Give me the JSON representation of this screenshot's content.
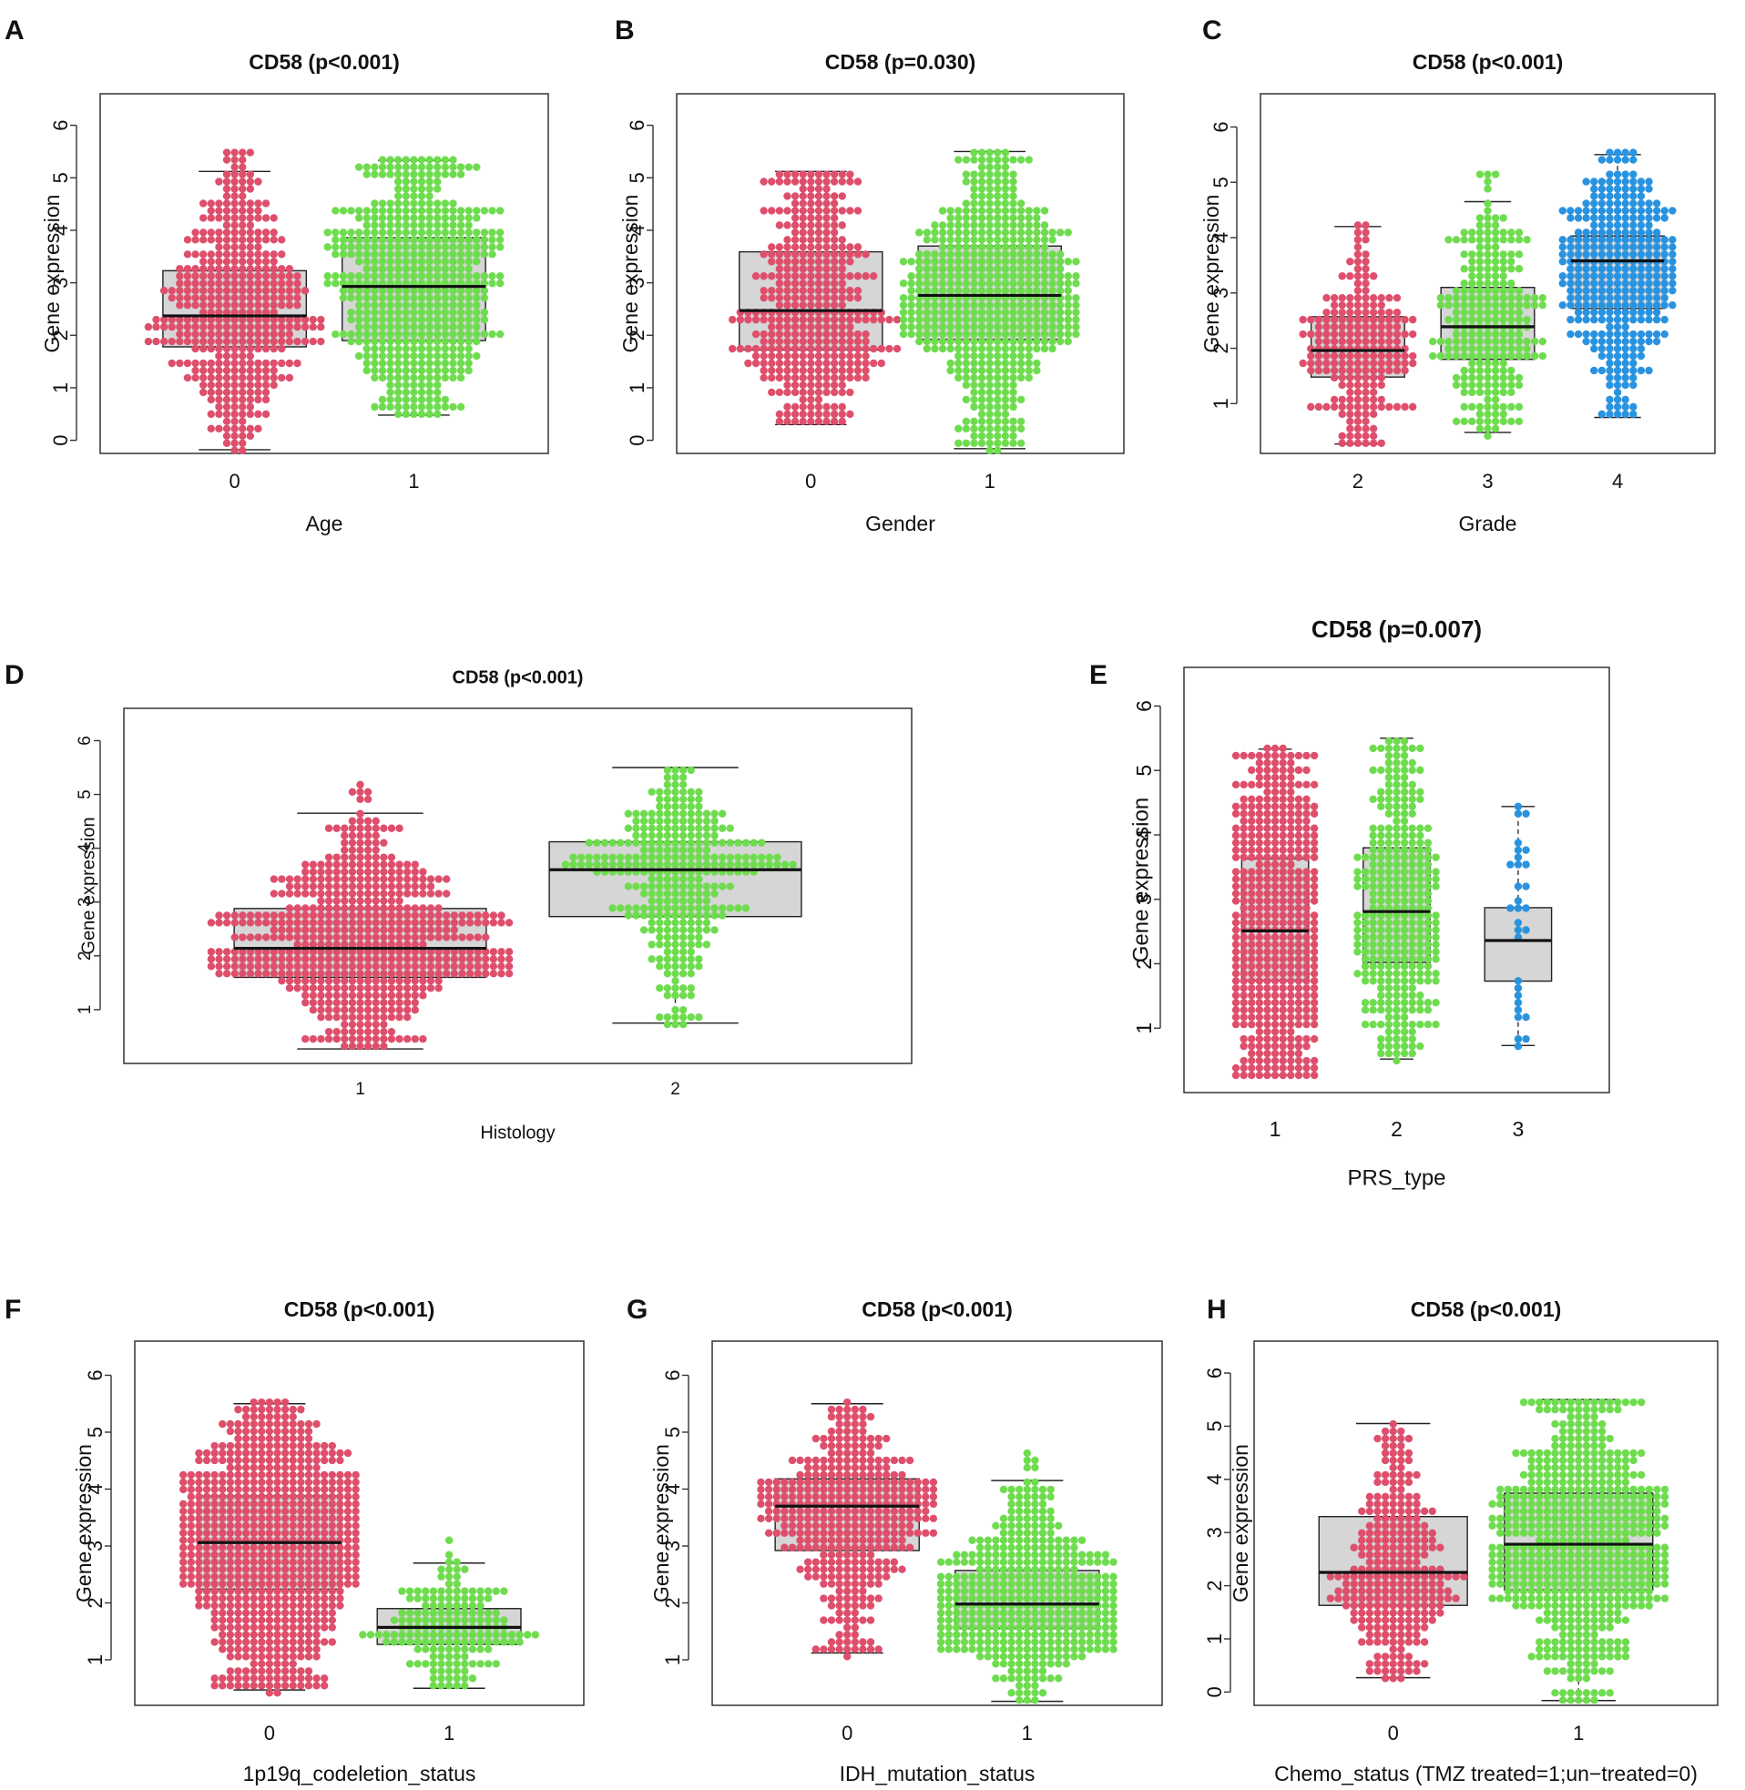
{
  "figure": {
    "chart_type": "box plot with beeswarm points",
    "y_axis_label": "Gene expression"
  },
  "colors": {
    "group1": "#de4f6c",
    "group2": "#6fdc4f",
    "group3": "#2a93e0",
    "box_fill": "#d6d6d6"
  },
  "chart_data": [
    {
      "panel": "A",
      "type": "box",
      "title": "CD58 (p<0.001)",
      "xlabel": "Age",
      "ylabel": "Gene expression",
      "yticks": [
        0,
        1,
        2,
        3,
        4,
        5,
        6
      ],
      "ylim": [
        -0.25,
        6.6
      ],
      "categories": [
        "0",
        "1"
      ],
      "boxes": [
        {
          "category": "0",
          "q1": 1.78,
          "median": 2.37,
          "q3": 3.23,
          "whisker_low": -0.18,
          "whisker_high": 5.12,
          "max_point": 5.5,
          "color_key": "group1",
          "n_points": 430
        },
        {
          "category": "1",
          "q1": 1.9,
          "median": 2.93,
          "q3": 3.86,
          "whisker_low": 0.48,
          "whisker_high": 5.33,
          "max_point": 5.33,
          "color_key": "group2",
          "n_points": 540
        }
      ]
    },
    {
      "panel": "B",
      "type": "box",
      "title": "CD58 (p=0.030)",
      "xlabel": "Gender",
      "ylabel": "Gene expression",
      "yticks": [
        0,
        1,
        2,
        3,
        4,
        5,
        6
      ],
      "ylim": [
        -0.25,
        6.6
      ],
      "categories": [
        "0",
        "1"
      ],
      "boxes": [
        {
          "category": "0",
          "q1": 1.72,
          "median": 2.47,
          "q3": 3.59,
          "whisker_low": 0.3,
          "whisker_high": 5.12,
          "max_point": 5.12,
          "color_key": "group1",
          "n_points": 400
        },
        {
          "category": "1",
          "q1": 1.92,
          "median": 2.76,
          "q3": 3.7,
          "whisker_low": -0.16,
          "whisker_high": 5.5,
          "max_point": 5.5,
          "color_key": "group2",
          "n_points": 580
        }
      ]
    },
    {
      "panel": "C",
      "type": "box",
      "title": "CD58 (p<0.001)",
      "xlabel": "Grade",
      "ylabel": "Gene expression",
      "yticks": [
        1,
        2,
        3,
        4,
        5,
        6
      ],
      "ylim": [
        0.1,
        6.6
      ],
      "categories": [
        "2",
        "3",
        "4"
      ],
      "boxes": [
        {
          "category": "2",
          "q1": 1.48,
          "median": 1.96,
          "q3": 2.57,
          "whisker_low": 0.27,
          "whisker_high": 4.2,
          "max_point": 4.2,
          "color_key": "group1",
          "n_points": 220
        },
        {
          "category": "3",
          "q1": 1.8,
          "median": 2.39,
          "q3": 3.1,
          "whisker_low": 0.48,
          "whisker_high": 4.65,
          "max_point": 5.12,
          "color_key": "group2",
          "n_points": 260
        },
        {
          "category": "4",
          "q1": 2.72,
          "median": 3.58,
          "q3": 4.03,
          "whisker_low": 0.75,
          "whisker_high": 5.5,
          "max_point": 5.5,
          "color_key": "group3",
          "n_points": 390
        }
      ]
    },
    {
      "panel": "D",
      "type": "box",
      "title": "CD58 (p<0.001)",
      "xlabel": "Histology",
      "ylabel": "Gene expression",
      "yticks": [
        1,
        2,
        3,
        4,
        5,
        6
      ],
      "ylim": [
        0.0,
        6.6
      ],
      "categories": [
        "1",
        "2"
      ],
      "boxes": [
        {
          "category": "1",
          "q1": 1.6,
          "median": 2.14,
          "q3": 2.88,
          "whisker_low": 0.27,
          "whisker_high": 4.65,
          "max_point": 5.12,
          "color_key": "group1",
          "n_points": 640
        },
        {
          "category": "2",
          "q1": 2.73,
          "median": 3.6,
          "q3": 4.12,
          "whisker_low": 0.75,
          "whisker_high": 5.5,
          "max_point": 5.5,
          "color_key": "group2",
          "n_points": 330
        }
      ]
    },
    {
      "panel": "E",
      "type": "box",
      "title": "CD58 (p=0.007)",
      "xlabel": "PRS_type",
      "ylabel": "Gene expression",
      "yticks": [
        1,
        2,
        3,
        4,
        5,
        6
      ],
      "ylim": [
        0.0,
        6.6
      ],
      "categories": [
        "1",
        "2",
        "3"
      ],
      "boxes": [
        {
          "category": "1",
          "q1": 1.74,
          "median": 2.51,
          "q3": 3.63,
          "whisker_low": 0.27,
          "whisker_high": 5.33,
          "max_point": 5.33,
          "color_key": "group1",
          "n_points": 640
        },
        {
          "category": "2",
          "q1": 2.02,
          "median": 2.81,
          "q3": 3.8,
          "whisker_low": 0.52,
          "whisker_high": 5.5,
          "max_point": 5.5,
          "color_key": "group2",
          "n_points": 350
        },
        {
          "category": "3",
          "q1": 1.73,
          "median": 2.36,
          "q3": 2.87,
          "whisker_low": 0.73,
          "whisker_high": 4.44,
          "max_point": 4.44,
          "color_key": "group3",
          "n_points": 28
        }
      ]
    },
    {
      "panel": "F",
      "type": "box",
      "title": "CD58 (p<0.001)",
      "xlabel": "1p19q_codeletion_status",
      "ylabel": "Gene expression",
      "yticks": [
        1,
        2,
        3,
        4,
        5,
        6
      ],
      "ylim": [
        0.2,
        6.6
      ],
      "categories": [
        "0",
        "1"
      ],
      "boxes": [
        {
          "category": "0",
          "q1": 2.24,
          "median": 3.06,
          "q3": 3.88,
          "whisker_low": 0.47,
          "whisker_high": 5.5,
          "max_point": 5.5,
          "color_key": "group1",
          "n_points": 800
        },
        {
          "category": "1",
          "q1": 1.27,
          "median": 1.57,
          "q3": 1.9,
          "whisker_low": 0.5,
          "whisker_high": 2.7,
          "max_point": 3.05,
          "color_key": "group2",
          "n_points": 170
        }
      ]
    },
    {
      "panel": "G",
      "type": "box",
      "title": "CD58 (p<0.001)",
      "xlabel": "IDH_mutation_status",
      "ylabel": "Gene expression",
      "yticks": [
        1,
        2,
        3,
        4,
        5,
        6
      ],
      "ylim": [
        0.2,
        6.6
      ],
      "categories": [
        "0",
        "1"
      ],
      "boxes": [
        {
          "category": "0",
          "q1": 2.92,
          "median": 3.7,
          "q3": 4.18,
          "whisker_low": 1.12,
          "whisker_high": 5.5,
          "max_point": 5.5,
          "color_key": "group1",
          "n_points": 420
        },
        {
          "category": "1",
          "q1": 1.55,
          "median": 1.98,
          "q3": 2.57,
          "whisker_low": 0.27,
          "whisker_high": 4.15,
          "max_point": 4.65,
          "color_key": "group2",
          "n_points": 540
        }
      ]
    },
    {
      "panel": "H",
      "type": "box",
      "title": "CD58 (p<0.001)",
      "xlabel": "Chemo_status (TMZ treated=1;un−treated=0)",
      "ylabel": "Gene expression",
      "yticks": [
        0,
        1,
        2,
        3,
        4,
        5,
        6
      ],
      "ylim": [
        -0.25,
        6.6
      ],
      "categories": [
        "0",
        "1"
      ],
      "boxes": [
        {
          "category": "0",
          "q1": 1.63,
          "median": 2.25,
          "q3": 3.3,
          "whisker_low": 0.27,
          "whisker_high": 5.05,
          "max_point": 5.05,
          "color_key": "group1",
          "n_points": 280
        },
        {
          "category": "1",
          "q1": 1.92,
          "median": 2.78,
          "q3": 3.74,
          "whisker_low": -0.16,
          "whisker_high": 5.5,
          "max_point": 5.5,
          "color_key": "group2",
          "n_points": 650
        }
      ]
    }
  ]
}
